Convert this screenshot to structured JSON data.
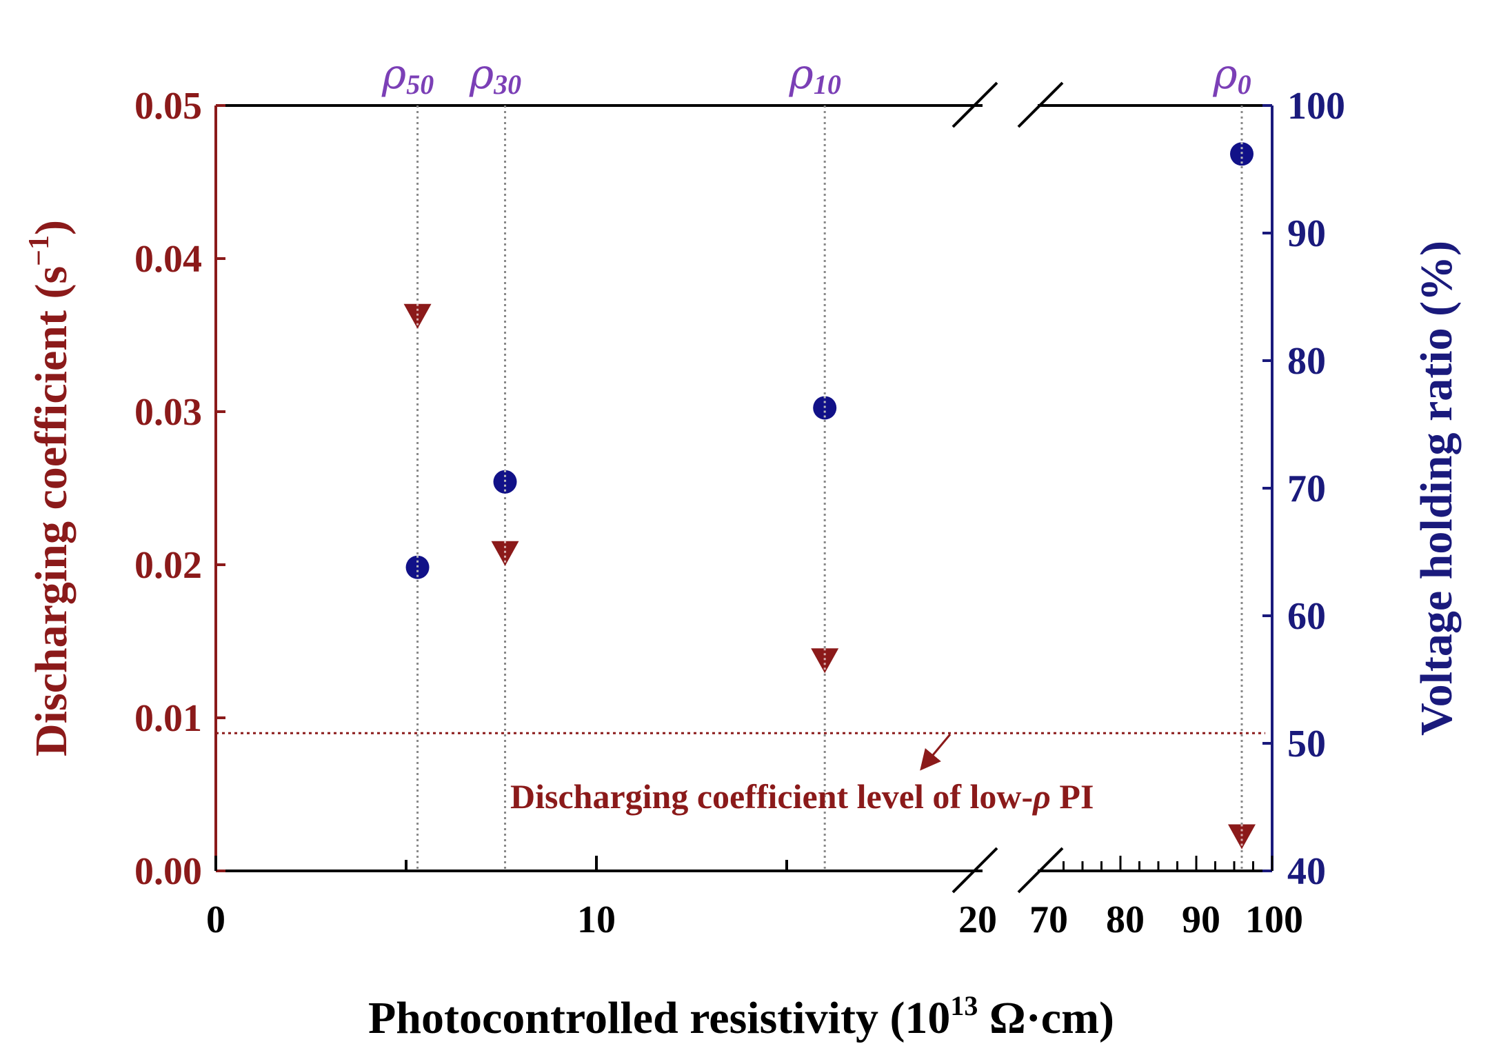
{
  "chart_data": {
    "type": "scatter",
    "xlabel": "Photocontrolled resistivity (10",
    "xlabel_exp": "13",
    "xlabel_unit": " Ω·cm)",
    "ylabel_left": "Discharging coefficient (s",
    "ylabel_left_exp": "−1",
    "ylabel_left_close": ")",
    "ylabel_right": "Voltage holding ratio (%)",
    "ylim_left": [
      0,
      0.05
    ],
    "ylim_right": [
      40,
      100
    ],
    "y_left_ticks": [
      "0.00",
      "0.01",
      "0.02",
      "0.03",
      "0.04",
      "0.05"
    ],
    "y_right_ticks": [
      "40",
      "50",
      "60",
      "70",
      "80",
      "90",
      "100"
    ],
    "x_segments": [
      {
        "range": [
          0,
          20
        ],
        "ticks": [
          "0",
          "10",
          "20"
        ]
      },
      {
        "range": [
          70,
          100
        ],
        "ticks": [
          "70",
          "80",
          "90",
          "100"
        ]
      }
    ],
    "x_break": "20–70",
    "resistivity_levels": [
      {
        "sym": "ρ",
        "sub": "50",
        "x": 5.3
      },
      {
        "sym": "ρ",
        "sub": "30",
        "x": 7.6
      },
      {
        "sym": "ρ",
        "sub": "10",
        "x": 16.0
      },
      {
        "sym": "ρ",
        "sub": "0",
        "x": 96.0
      }
    ],
    "series": [
      {
        "name": "Discharging coefficient",
        "axis": "left",
        "marker": "triangle-down",
        "color": "#8b1a1a",
        "x": [
          5.3,
          7.6,
          16.0,
          96.0
        ],
        "y": [
          0.0365,
          0.021,
          0.014,
          0.0025
        ]
      },
      {
        "name": "Voltage holding ratio",
        "axis": "right",
        "marker": "circle",
        "color": "#111188",
        "x": [
          5.3,
          7.6,
          16.0,
          96.0
        ],
        "y": [
          63.8,
          70.5,
          76.3,
          96.2
        ]
      }
    ],
    "reference_line": {
      "axis": "left",
      "y": 0.009,
      "style": "dotted",
      "color": "#8b1a1a"
    },
    "annotation": {
      "text_before": "Discharging coefficient level of low-",
      "text_sym": "ρ",
      "text_after": " PI"
    }
  }
}
